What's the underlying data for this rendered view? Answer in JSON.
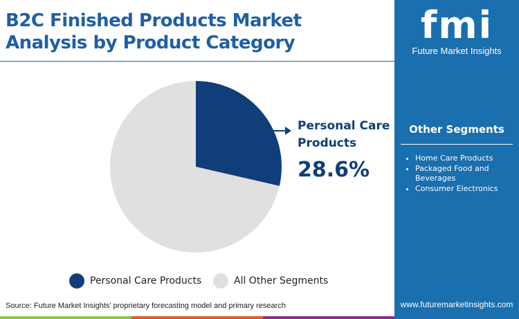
{
  "title_line1": "B2C Finished Products Market",
  "title_line2": "Analysis by Product Category",
  "logo": {
    "text": "fmi",
    "name": "Future Market Insights"
  },
  "sidebar": {
    "heading": "Other Segments",
    "items": [
      "Home Care Products",
      "Packaged Food and Beverages",
      "Consumer Electronics"
    ],
    "url": "www.futuremarketinsights.com"
  },
  "callout": {
    "label": "Personal Care Products",
    "value": "28.6%"
  },
  "source": "Source: Future Market Insights’ proprietary forecasting model and primary research",
  "chart_data": {
    "type": "pie",
    "slices": [
      {
        "name": "Personal Care Products",
        "value": 28.6,
        "color": "#0f3e7b"
      },
      {
        "name": "All Other Segments",
        "value": 71.4,
        "color": "#e0e0e0"
      }
    ]
  },
  "colors": {
    "accent": "#1f5fa6",
    "sidebar": "#1a6fae",
    "bars": [
      "#8cc63f",
      "#e8582a",
      "#8a2e8c"
    ]
  }
}
